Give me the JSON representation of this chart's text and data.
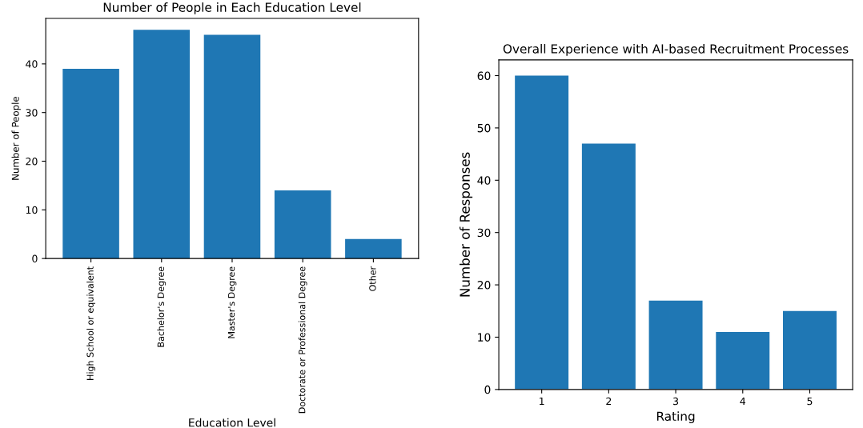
{
  "chart_data": [
    {
      "type": "bar",
      "title": "Number of People in Each Education Level",
      "xlabel": "Education Level",
      "ylabel": "Number of People",
      "categories": [
        "High School or equivalent",
        "Bachelor's Degree",
        "Master's Degree",
        "Doctorate or Professional Degree",
        "Other"
      ],
      "values": [
        39,
        47,
        46,
        14,
        4
      ],
      "color": "#1f77b4",
      "ylim": [
        0,
        49.35
      ],
      "yticks": [
        0,
        10,
        20,
        30,
        40
      ],
      "grid": false
    },
    {
      "type": "bar",
      "title": "Overall Experience with AI-based Recruitment Processes",
      "xlabel": "Rating",
      "ylabel": "Number of Responses",
      "categories": [
        "1",
        "2",
        "3",
        "4",
        "5"
      ],
      "values": [
        60,
        47,
        17,
        11,
        15
      ],
      "color": "#1f77b4",
      "ylim": [
        0,
        63
      ],
      "yticks": [
        0,
        10,
        20,
        30,
        40,
        50,
        60
      ],
      "grid": false
    }
  ]
}
